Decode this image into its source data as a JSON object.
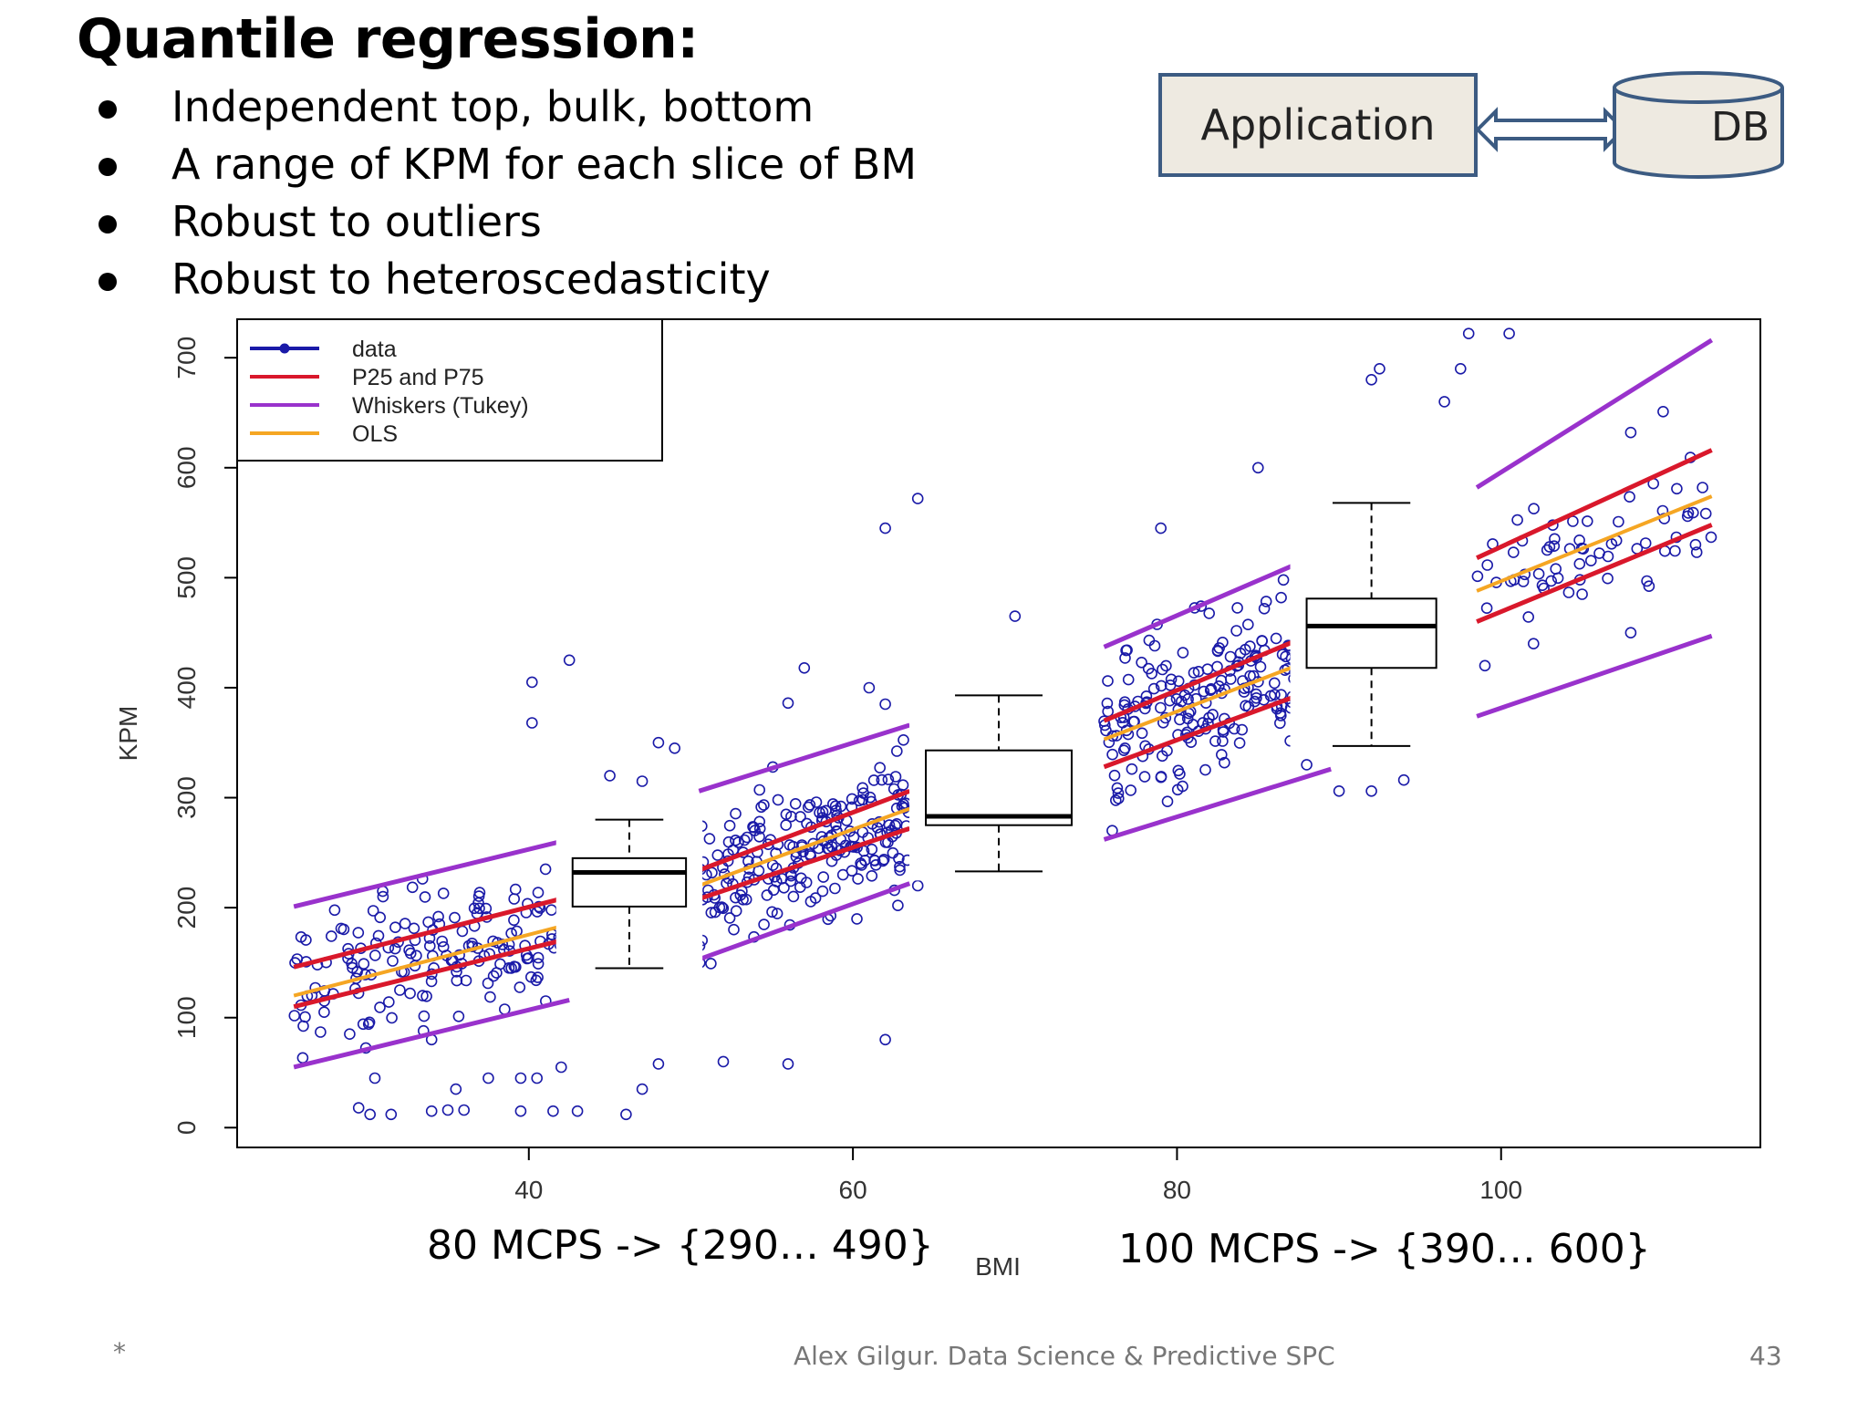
{
  "slide": {
    "title": "Quantile regression:",
    "bullets": [
      "Independent top, bulk, bottom",
      "A range of KPM for each slice of BM",
      "Robust to outliers",
      "Robust to heteroscedasticity"
    ]
  },
  "architecture": {
    "app_label": "Application",
    "db_label": "DB",
    "frame_color": "#3c5b82",
    "box_fill": "#eeeae1"
  },
  "annotations": {
    "left": "80 MCPS -> {290… 490}",
    "right": "100 MCPS -> {390… 600}"
  },
  "footer": {
    "bullet": "*",
    "credit": "Alex Gilgur.  Data Science & Predictive SPC",
    "page": "43"
  },
  "colors": {
    "data": "#1a1aa8",
    "p25_p75": "#d9182b",
    "whiskers": "#9932cc",
    "ols": "#f5a623"
  },
  "chart_data": {
    "type": "scatter",
    "xlabel": "BMI",
    "ylabel": "KPM",
    "xlim": [
      22,
      116
    ],
    "ylim": [
      -18,
      735
    ],
    "xticks": [
      "40",
      "60",
      "80",
      "100"
    ],
    "xtick_values": [
      40,
      60,
      80,
      100
    ],
    "yticks": [
      "0",
      "100",
      "200",
      "300",
      "400",
      "500",
      "600",
      "700"
    ],
    "ytick_values": [
      0,
      100,
      200,
      300,
      400,
      500,
      600,
      700
    ],
    "legend": {
      "position": "top-left",
      "entries": [
        {
          "label": "data",
          "kind": "point-line",
          "color": "#1a1aa8"
        },
        {
          "label": "P25 and P75",
          "kind": "line",
          "color": "#d9182b"
        },
        {
          "label": "Whiskers (Tukey)",
          "kind": "line",
          "color": "#9932cc"
        },
        {
          "label": "OLS",
          "kind": "line",
          "color": "#f5a623"
        }
      ]
    },
    "segments": [
      {
        "x_range": [
          25.5,
          42.5
        ],
        "p75": [
          146,
          210
        ],
        "p25": [
          110,
          172
        ],
        "upper_whisker": [
          201,
          262
        ],
        "lower_whisker": [
          55,
          116
        ],
        "ols": [
          120,
          185
        ]
      },
      {
        "x_range": [
          50.5,
          63.5
        ],
        "p75": [
          234,
          306
        ],
        "p25": [
          208,
          272
        ],
        "upper_whisker": [
          306,
          366
        ],
        "lower_whisker": [
          153,
          222
        ],
        "ols": [
          220,
          290
        ]
      },
      {
        "x_range": [
          75.5,
          89.5
        ],
        "p75": [
          370,
          456
        ],
        "p25": [
          328,
          404
        ],
        "upper_whisker": [
          437,
          526
        ],
        "lower_whisker": [
          262,
          326
        ],
        "ols": [
          353,
          432
        ]
      },
      {
        "x_range": [
          98.5,
          113
        ],
        "p75": [
          518,
          616
        ],
        "p25": [
          460,
          548
        ],
        "upper_whisker": [
          582,
          716
        ],
        "lower_whisker": [
          374,
          447
        ],
        "ols": [
          488,
          574
        ]
      }
    ],
    "boxplots": [
      {
        "x": 46.2,
        "half_width": 3.5,
        "min": 145,
        "q1": 201,
        "median": 232,
        "q3": 245,
        "max": 280
      },
      {
        "x": 69.0,
        "half_width": 4.5,
        "min": 233,
        "q1": 275,
        "median": 283,
        "q3": 343,
        "max": 393
      },
      {
        "x": 92.0,
        "half_width": 4.0,
        "min": 347,
        "q1": 418,
        "median": 456,
        "q3": 481,
        "max": 568
      }
    ],
    "clusters": [
      {
        "x_range": [
          25.5,
          42.5
        ],
        "center": [
          125,
          190
        ],
        "spread": 30,
        "count": 170
      },
      {
        "x_range": [
          50.5,
          63.5
        ],
        "center": [
          218,
          288
        ],
        "spread": 32,
        "count": 220
      },
      {
        "x_range": [
          75.5,
          89.5
        ],
        "center": [
          350,
          430
        ],
        "spread": 36,
        "count": 240
      },
      {
        "x_range": [
          98.5,
          113
        ],
        "center": [
          490,
          570
        ],
        "spread": 24,
        "count": 60
      }
    ],
    "outliers": [
      [
        29.5,
        18
      ],
      [
        30.2,
        12
      ],
      [
        31.5,
        12
      ],
      [
        30.5,
        45
      ],
      [
        34,
        15
      ],
      [
        35,
        16
      ],
      [
        36,
        16
      ],
      [
        35.5,
        35
      ],
      [
        33.5,
        88
      ],
      [
        34,
        80
      ],
      [
        37.5,
        45
      ],
      [
        39.5,
        45
      ],
      [
        40.5,
        45
      ],
      [
        39.5,
        15
      ],
      [
        41.5,
        15
      ],
      [
        42,
        55
      ],
      [
        43,
        15
      ],
      [
        46,
        12
      ],
      [
        47,
        35
      ],
      [
        48,
        58
      ],
      [
        40.2,
        405
      ],
      [
        40.2,
        368
      ],
      [
        42.5,
        425
      ],
      [
        31,
        210
      ],
      [
        45,
        320
      ],
      [
        48,
        350
      ],
      [
        49,
        345
      ],
      [
        47,
        315
      ],
      [
        52,
        60
      ],
      [
        56,
        58
      ],
      [
        56,
        386
      ],
      [
        57,
        418
      ],
      [
        62,
        545
      ],
      [
        64,
        572
      ],
      [
        62,
        80
      ],
      [
        64,
        220
      ],
      [
        61,
        400
      ],
      [
        62,
        385
      ],
      [
        70,
        465
      ],
      [
        76,
        270
      ],
      [
        79,
        545
      ],
      [
        85,
        600
      ],
      [
        88,
        540
      ],
      [
        88,
        330
      ],
      [
        90,
        306
      ],
      [
        92,
        306
      ],
      [
        94,
        316
      ],
      [
        92,
        680
      ],
      [
        92.5,
        690
      ],
      [
        96.5,
        660
      ],
      [
        97.5,
        690
      ],
      [
        98,
        722
      ],
      [
        100.5,
        722
      ],
      [
        108,
        632
      ],
      [
        110,
        651
      ],
      [
        112,
        530
      ],
      [
        109,
        497
      ],
      [
        108,
        450
      ],
      [
        105,
        485
      ],
      [
        102,
        440
      ],
      [
        99,
        420
      ]
    ]
  }
}
